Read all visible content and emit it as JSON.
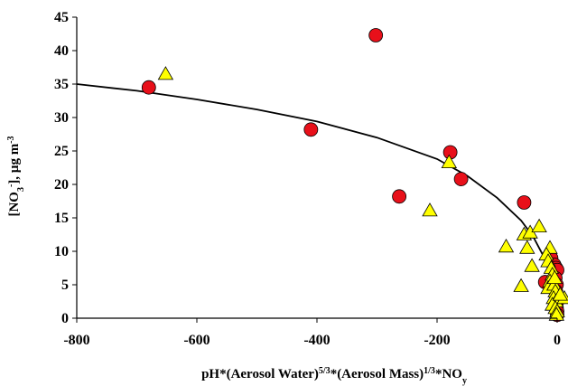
{
  "chart_data": {
    "type": "scatter",
    "title": "",
    "xlabel": "pH*(Aerosol Water)^5/3*(Aerosol Mass)^1/3*NOy",
    "ylabel": "[NO3-], µg m-3",
    "xlim": [
      -800,
      0
    ],
    "ylim": [
      0,
      45
    ],
    "x_ticks": [
      "-800",
      "-600",
      "-400",
      "-200",
      "0"
    ],
    "y_ticks": [
      "0",
      "5",
      "10",
      "15",
      "20",
      "25",
      "30",
      "35",
      "40",
      "45"
    ],
    "grid": false,
    "legend": "none",
    "series": [
      {
        "marker": "circle",
        "color": "#e8101a",
        "points": [
          [
            -680,
            34.5
          ],
          [
            -410,
            28.2
          ],
          [
            -302,
            42.3
          ],
          [
            -178,
            24.8
          ],
          [
            -263,
            18.2
          ],
          [
            -160,
            20.8
          ],
          [
            -55,
            17.3
          ],
          [
            -20,
            5.4
          ],
          [
            -10,
            9.0
          ],
          [
            -5,
            8.0
          ],
          [
            -2,
            7.5
          ],
          [
            0,
            7.2
          ],
          [
            -3,
            6.0
          ],
          [
            -1,
            5.0
          ],
          [
            -2,
            4.0
          ],
          [
            -1,
            3.0
          ],
          [
            0,
            2.5
          ],
          [
            -1,
            1.5
          ],
          [
            0,
            1.0
          ],
          [
            0,
            0.5
          ]
        ]
      },
      {
        "marker": "triangle",
        "color": "#ffff00",
        "points": [
          [
            -652,
            36.5
          ],
          [
            -180,
            23.3
          ],
          [
            -212,
            16.1
          ],
          [
            -85,
            10.7
          ],
          [
            -60,
            4.8
          ],
          [
            -55,
            12.5
          ],
          [
            -45,
            12.8
          ],
          [
            -30,
            13.7
          ],
          [
            -50,
            10.5
          ],
          [
            -42,
            7.8
          ],
          [
            -12,
            10.5
          ],
          [
            -18,
            9.5
          ],
          [
            -15,
            8.5
          ],
          [
            -10,
            7.5
          ],
          [
            -8,
            6.5
          ],
          [
            -12,
            5.5
          ],
          [
            -15,
            4.5
          ],
          [
            -5,
            5.0
          ],
          [
            -3,
            4.0
          ],
          [
            -6,
            3.0
          ],
          [
            -2,
            2.5
          ],
          [
            -8,
            2.0
          ],
          [
            -3,
            1.5
          ],
          [
            0,
            1.0
          ],
          [
            -1,
            0.5
          ],
          [
            12,
            3.0
          ],
          [
            5,
            3.5
          ],
          [
            -4,
            6.0
          ]
        ]
      }
    ],
    "fit_curve": {
      "color": "#000000",
      "points": [
        [
          -800,
          35.0
        ],
        [
          -700,
          34.0
        ],
        [
          -600,
          32.7
        ],
        [
          -500,
          31.2
        ],
        [
          -400,
          29.4
        ],
        [
          -300,
          27.0
        ],
        [
          -200,
          23.8
        ],
        [
          -150,
          21.3
        ],
        [
          -100,
          18.0
        ],
        [
          -60,
          14.6
        ],
        [
          -40,
          12.2
        ],
        [
          -20,
          8.8
        ],
        [
          -10,
          6.0
        ],
        [
          -5,
          3.5
        ],
        [
          0,
          0.5
        ]
      ]
    }
  }
}
